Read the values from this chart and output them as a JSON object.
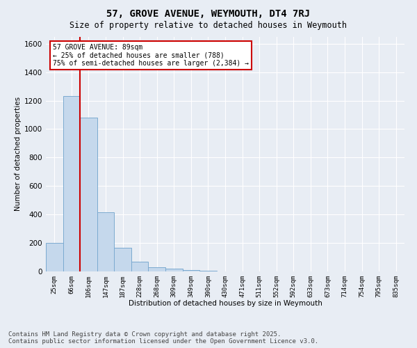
{
  "title": "57, GROVE AVENUE, WEYMOUTH, DT4 7RJ",
  "subtitle": "Size of property relative to detached houses in Weymouth",
  "xlabel": "Distribution of detached houses by size in Weymouth",
  "ylabel": "Number of detached properties",
  "categories": [
    "25sqm",
    "66sqm",
    "106sqm",
    "147sqm",
    "187sqm",
    "228sqm",
    "268sqm",
    "309sqm",
    "349sqm",
    "390sqm",
    "430sqm",
    "471sqm",
    "511sqm",
    "552sqm",
    "592sqm",
    "633sqm",
    "673sqm",
    "714sqm",
    "754sqm",
    "795sqm",
    "835sqm"
  ],
  "values": [
    200,
    1230,
    1080,
    415,
    165,
    70,
    30,
    20,
    10,
    5,
    0,
    0,
    0,
    0,
    0,
    0,
    0,
    0,
    0,
    0,
    0
  ],
  "bar_color": "#c5d8ec",
  "bar_edge_color": "#7baad0",
  "background_color": "#e8edf4",
  "grid_color": "#ffffff",
  "annotation_text": "57 GROVE AVENUE: 89sqm\n← 25% of detached houses are smaller (788)\n75% of semi-detached houses are larger (2,384) →",
  "annotation_box_facecolor": "#ffffff",
  "annotation_border_color": "#cc0000",
  "vline_x": 1.5,
  "vline_color": "#cc0000",
  "ylim": [
    0,
    1650
  ],
  "yticks": [
    0,
    200,
    400,
    600,
    800,
    1000,
    1200,
    1400,
    1600
  ],
  "footer_line1": "Contains HM Land Registry data © Crown copyright and database right 2025.",
  "footer_line2": "Contains public sector information licensed under the Open Government Licence v3.0.",
  "title_fontsize": 10,
  "subtitle_fontsize": 8.5,
  "footer_fontsize": 6.5,
  "annot_fontsize": 7,
  "axis_label_fontsize": 7.5,
  "tick_label_fontsize": 6.5,
  "ytick_fontsize": 7.5
}
